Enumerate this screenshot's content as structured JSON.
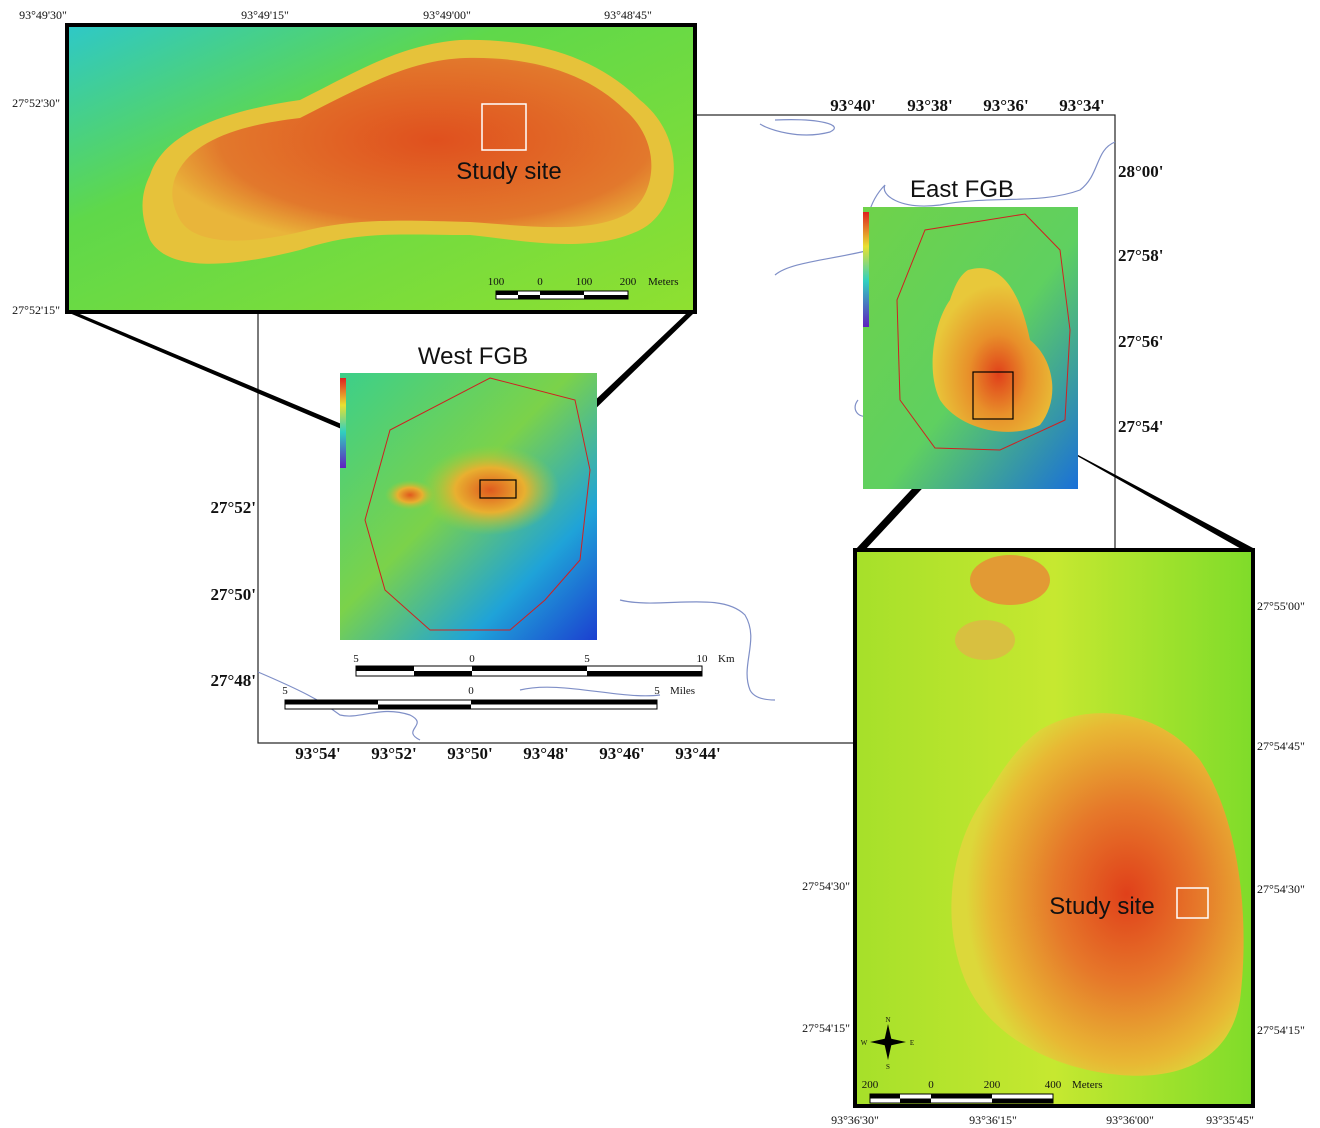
{
  "north_inset": {
    "lon_labels": [
      "93°49'30\"",
      "93°49'15\"",
      "93°49'00\"",
      "93°48'45\""
    ],
    "lat_labels": [
      "27°52'30\"",
      "27°52'15\""
    ],
    "site_label": "Study site",
    "scale_labels": [
      "100",
      "0",
      "100",
      "200",
      "Meters"
    ]
  },
  "regional_map": {
    "top_lon_labels": [
      "93°40'",
      "93°38'",
      "93°36'",
      "93°34'"
    ],
    "right_lat_labels": [
      "28°00'",
      "27°58'",
      "27°56'",
      "27°54'"
    ],
    "left_lat_labels": [
      "27°52'",
      "27°50'",
      "27°48'"
    ],
    "bottom_lon_labels": [
      "93°54'",
      "93°52'",
      "93°50'",
      "93°48'",
      "93°46'",
      "93°44'"
    ],
    "west_label": "West FGB",
    "east_label": "East FGB",
    "km_scale_labels": [
      "5",
      "0",
      "5",
      "10",
      "Km"
    ],
    "mile_scale_labels": [
      "5",
      "0",
      "5",
      "Miles"
    ]
  },
  "east_inset": {
    "left_lat_labels": [
      "27°54'30\"",
      "27°54'15\""
    ],
    "right_lat_labels": [
      "27°55'00\"",
      "27°54'45\"",
      "27°54'30\"",
      "27°54'15\""
    ],
    "lon_labels": [
      "93°36'30\"",
      "93°36'15\"",
      "93°36'00\"",
      "93°35'45\""
    ],
    "site_label": "Study site",
    "scale_labels": [
      "200",
      "0",
      "200",
      "400",
      "Meters"
    ],
    "compass_labels": [
      "N",
      "S",
      "E",
      "W"
    ]
  }
}
